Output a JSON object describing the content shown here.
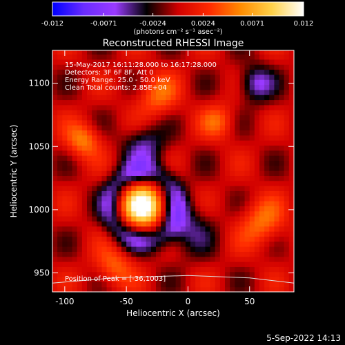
{
  "chart_data": {
    "type": "heatmap",
    "title": "Reconstructed RHESSI Image",
    "xlabel": "Heliocentric X (arcsec)",
    "ylabel": "Heliocentric Y (arcsec)",
    "xlim": [
      -110,
      86
    ],
    "ylim": [
      935,
      1126
    ],
    "xticks": [
      -100,
      -50,
      0,
      50
    ],
    "yticks": [
      950,
      1000,
      1050,
      1100
    ],
    "colorbar": {
      "min": -0.012,
      "max": 0.012,
      "ticks": [
        "-0.012",
        "-0.0071",
        "-0.0024",
        "0.0024",
        "0.0071",
        "0.012"
      ],
      "tick_values": [
        -0.012,
        -0.0071,
        -0.0024,
        0.0024,
        0.0071,
        0.012
      ],
      "unit_label": "(photons cm⁻² s⁻¹ asec⁻²)",
      "colors": [
        "#0000ff",
        "#6a2cff",
        "#9a3aff",
        "#000000",
        "#d00000",
        "#ff2a00",
        "#ff8c00",
        "#ffd24a",
        "#ffffff"
      ]
    },
    "annotations": [
      "15-May-2017 16:11:28.000 to 16:17:28.000",
      "Detectors: 3F 6F 8F, Att 0",
      "Energy Range: 25.0 - 50.0 keV",
      "Clean     Total counts: 2.85E+04"
    ],
    "peak_label": "Position of Peak = [-36,1003]",
    "peak": {
      "x": -36,
      "y": 1003,
      "value": 0.012
    },
    "sources": [
      {
        "x": -36,
        "y": 1003,
        "sigma": 11,
        "amplitude": 0.013
      },
      {
        "x": 55,
        "y": 1100,
        "sigma": 10,
        "amplitude": -0.006
      },
      {
        "x": -35,
        "y": 1050,
        "sigma": 12,
        "amplitude": -0.005
      },
      {
        "x": 0,
        "y": 985,
        "sigma": 14,
        "amplitude": -0.004
      },
      {
        "x": -85,
        "y": 1055,
        "sigma": 10,
        "amplitude": 0.0055
      },
      {
        "x": -25,
        "y": 1090,
        "sigma": 12,
        "amplitude": 0.0045
      },
      {
        "x": 60,
        "y": 990,
        "sigma": 13,
        "amplitude": 0.005
      },
      {
        "x": -60,
        "y": 955,
        "sigma": 11,
        "amplitude": 0.0045
      },
      {
        "x": 25,
        "y": 1070,
        "sigma": 10,
        "amplitude": 0.004
      }
    ],
    "limb_curve": {
      "x": [
        -110,
        -60,
        0,
        50,
        86
      ],
      "y": [
        942,
        946,
        948,
        946,
        942
      ]
    },
    "grid": false,
    "legend": "none"
  },
  "footer": {
    "timestamp": "5-Sep-2022 14:13"
  }
}
